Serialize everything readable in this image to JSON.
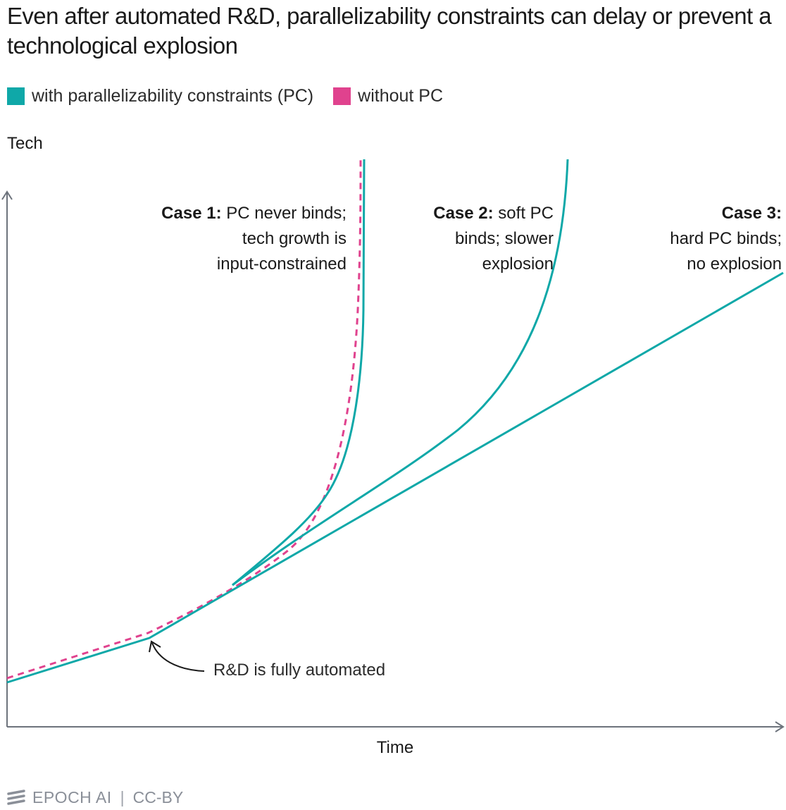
{
  "chart_data": {
    "type": "line",
    "title": "Even after automated R&D, parallelizability constraints can delay or prevent a technological explosion",
    "xlabel": "Time",
    "ylabel": "Tech",
    "legend_placement": "top-left",
    "grid": false,
    "series": [
      {
        "name": "with parallelizability constraints (PC)",
        "color": "#0fa8a8",
        "style": "solid"
      },
      {
        "name": "without PC",
        "color": "#e0428e",
        "style": "dashed"
      }
    ],
    "annotations": {
      "case1_bold": "Case 1:",
      "case1_line1": "PC never binds;",
      "case1_line2": "tech growth is",
      "case1_line3": "input-constrained",
      "case2_bold": "Case 2:",
      "case2_line1": "soft PC",
      "case2_line2": "binds; slower",
      "case2_line3": "explosion",
      "case3_bold": "Case 3:",
      "case3_line1": "hard PC binds;",
      "case3_line2": "no explosion",
      "automation": "R&D is fully automated"
    }
  },
  "footer": {
    "brand": "EPOCH AI",
    "license": "CC-BY"
  }
}
